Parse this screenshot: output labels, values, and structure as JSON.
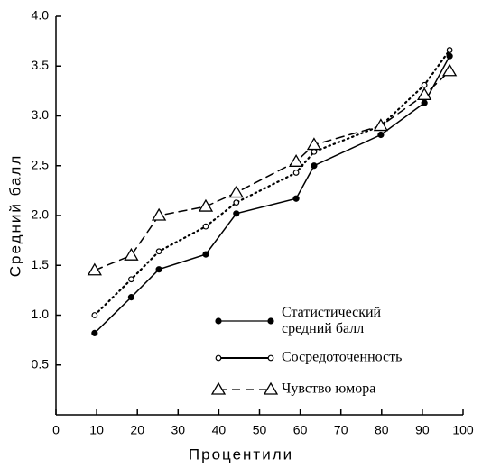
{
  "chart_data": {
    "type": "line",
    "xlabel": "Процентили",
    "ylabel": "Средний балл",
    "x": [
      9.5,
      18.5,
      25.3,
      36.8,
      44.3,
      59,
      63.4,
      79.8,
      90.5,
      96.7
    ],
    "series": [
      {
        "name": "Статистический средний балл",
        "color": "#000000",
        "linestyle": "solid",
        "marker": "filled-circle",
        "values": [
          0.82,
          1.18,
          1.46,
          1.61,
          2.02,
          2.17,
          2.5,
          2.81,
          3.13,
          3.6
        ]
      },
      {
        "name": "Сосредоточенность",
        "color": "#000000",
        "linestyle": "dotted",
        "marker": "open-circle",
        "values": [
          1.0,
          1.36,
          1.64,
          1.89,
          2.13,
          2.43,
          2.64,
          2.9,
          3.31,
          3.66
        ]
      },
      {
        "name": "Чувство юмора",
        "color": "#000000",
        "linestyle": "dashed",
        "marker": "triangle",
        "values": [
          1.45,
          1.6,
          2.0,
          2.09,
          2.23,
          2.54,
          2.71,
          2.9,
          3.21,
          3.45
        ]
      }
    ],
    "xlim": [
      0,
      100
    ],
    "xticks": [
      0,
      10,
      20,
      30,
      40,
      50,
      60,
      70,
      80,
      90,
      100
    ],
    "ylim": [
      0,
      4
    ],
    "yticks": [
      0.5,
      {
        "value": 1,
        "label": "1.0"
      },
      1.5,
      {
        "value": 2,
        "label": "2.0"
      },
      2.5,
      {
        "value": 3,
        "label": "3.0"
      },
      3.5,
      {
        "value": 4,
        "label": "4.0"
      }
    ],
    "grid": false,
    "legend": "lower right"
  }
}
